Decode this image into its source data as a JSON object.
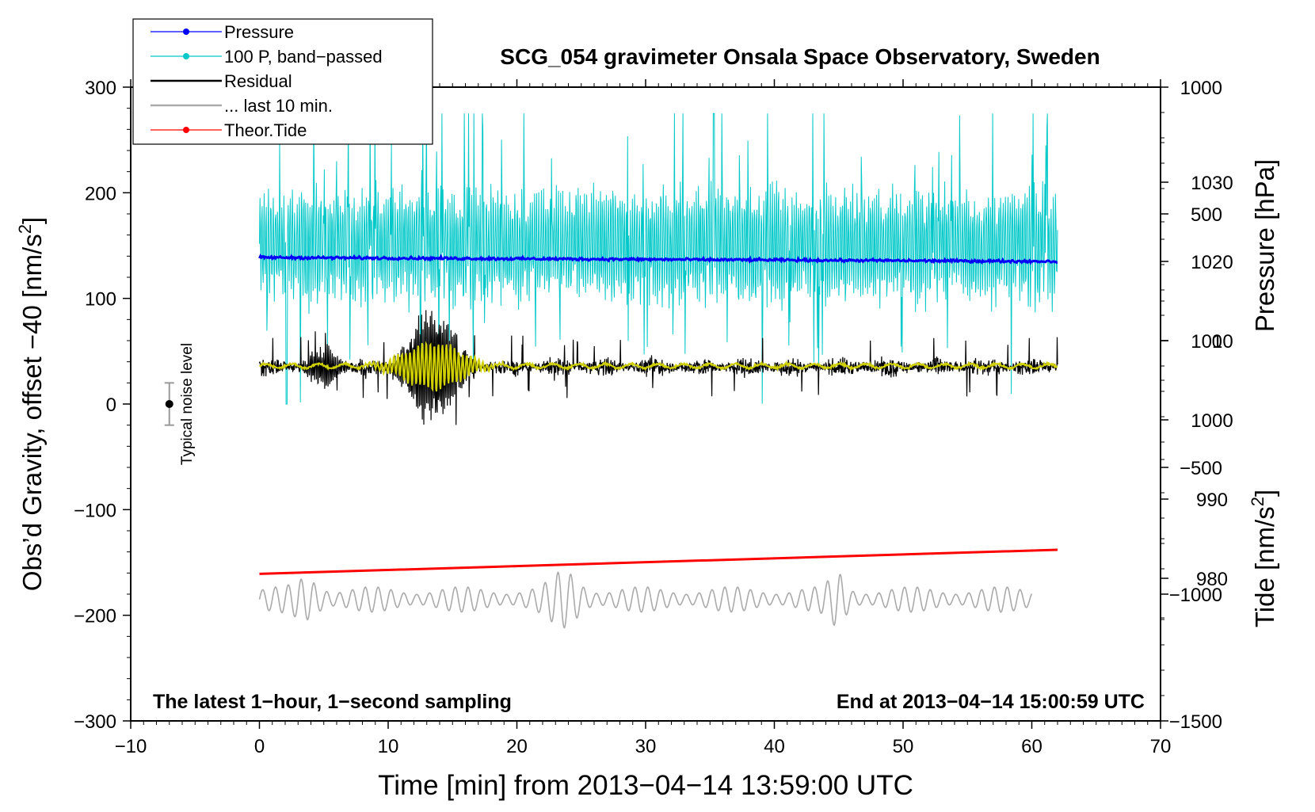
{
  "chart_data": {
    "type": "line",
    "title": "SCG_054 gravimeter Onsala Space Observatory, Sweden",
    "xlabel": "Time [min] from 2013−04−14 13:59:00 UTC",
    "ylabel_left_main": "Obs’d Gravity, offset −40 [nm/s",
    "ylabel_left_sup": "2",
    "ylabel_left_close": "]",
    "ylabel_pressure": "Pressure [hPa]",
    "ylabel_tide_main": "Tide [nm/s",
    "ylabel_tide_sup": "2",
    "ylabel_tide_close": "]",
    "xlim": [
      -10,
      70
    ],
    "ylim": [
      -300,
      300
    ],
    "pressure_lim": [
      962,
      1042
    ],
    "tide_lim": [
      -1500,
      1000
    ],
    "x_ticks": [
      "−10",
      "0",
      "10",
      "20",
      "30",
      "40",
      "50",
      "60",
      "70"
    ],
    "y_ticks": [
      "300",
      "200",
      "100",
      "0",
      "−100",
      "−200",
      "−300"
    ],
    "pressure_ticks": [
      "1030",
      "1020",
      "1010",
      "1000",
      "990",
      "980"
    ],
    "tide_ticks": [
      "1000",
      "500",
      "0",
      "−500",
      "−1000",
      "−1500"
    ],
    "legend": {
      "position": "top-left",
      "entries": [
        {
          "label": "Pressure",
          "color": "#0000ff",
          "marker": true
        },
        {
          "label": "100 P, band−passed",
          "color": "#00c8c8",
          "marker": true
        },
        {
          "label": "Residual",
          "color": "#000000",
          "marker": false
        },
        {
          "label": "... last 10 min.",
          "color": "#aaaaaa",
          "marker": false
        },
        {
          "label": "Theor.Tide",
          "color": "#ff0000",
          "marker": true
        }
      ]
    },
    "annotations": {
      "bottom_left": "The latest 1−hour, 1−second sampling",
      "bottom_right": "End at 2013−04−14 15:00:59 UTC",
      "noise_label": "Typical noise level"
    },
    "noise_bar": {
      "x": -7,
      "center": 0,
      "half_range": 20
    },
    "series": [
      {
        "name": "Pressure",
        "axis": "pressure",
        "color": "#0000ff",
        "x_range": [
          0,
          62
        ],
        "level": 1020.5,
        "end_level": 1020.0
      },
      {
        "name": "100 P, band−passed",
        "axis": "gravity",
        "color": "#00c8c8",
        "x_range": [
          0,
          62
        ],
        "center": 150,
        "amplitude": 60,
        "extreme_min": 0,
        "extreme_max": 275
      },
      {
        "name": "Residual",
        "axis": "gravity",
        "color": "#000000",
        "x_range": [
          0,
          62
        ],
        "center": 35,
        "amplitude": 10,
        "event_peak_x": 13.5,
        "event_max": 110,
        "event_min": -45
      },
      {
        "name": "Residual smoothed",
        "axis": "gravity",
        "color": "#d0d000",
        "x_range": [
          0,
          62
        ],
        "center": 36,
        "event_peak_x": 13.5,
        "event_amplitude": 22
      },
      {
        "name": "... last 10 min.",
        "axis": "gravity",
        "color": "#aaaaaa",
        "x_range": [
          0,
          60
        ],
        "center": -185,
        "amplitude": 12,
        "extreme_min": -220,
        "extreme_max": -148
      },
      {
        "name": "Theor.Tide",
        "axis": "tide",
        "color": "#ff0000",
        "points": [
          [
            0,
            -920
          ],
          [
            62,
            -825
          ]
        ]
      }
    ]
  }
}
